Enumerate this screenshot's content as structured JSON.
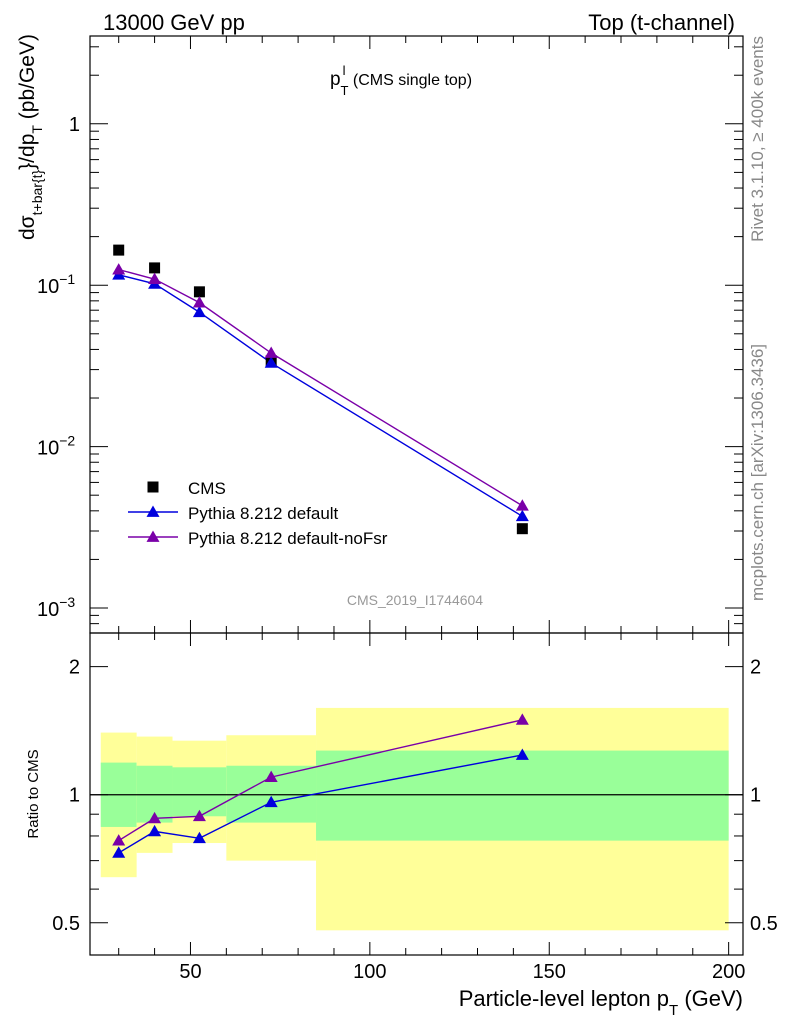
{
  "header": {
    "left": "13000 GeV pp",
    "right": "Top (t-channel)"
  },
  "side_labels": {
    "top": "Rivet 3.1.10, ≥ 400k events",
    "bottom": "mcplots.cern.ch [arXiv:1306.3436]"
  },
  "chart_data": [
    {
      "type": "line",
      "panel": "main",
      "title": "p_T^l (CMS single top)",
      "title_parts": {
        "base": "p",
        "sub": "T",
        "sup": "l",
        "rest": " (CMS single top)"
      },
      "ylabel": "dσ_{t+bar{t}}/dp_T  (pb/GeV)",
      "ylabel_parts": {
        "a": "dσ",
        "sub1": "t+bar{t}",
        "b": "}/dp",
        "sub2": "T",
        "c": "   (pb/GeV)"
      },
      "xlim": [
        22,
        204
      ],
      "yscale": "log",
      "ylim": [
        0.0007,
        3.5
      ],
      "yticks": [
        {
          "value": 1,
          "label": "1"
        },
        {
          "value": 0.1,
          "base": "10",
          "exp": "−1"
        },
        {
          "value": 0.01,
          "base": "10",
          "exp": "−2"
        },
        {
          "value": 0.001,
          "base": "10",
          "exp": "−3"
        }
      ],
      "watermark": "CMS_2019_I1744604",
      "legend_position": "lower-left",
      "series": [
        {
          "name": "CMS",
          "marker": "square",
          "color": "#000000",
          "x": [
            30,
            40,
            52.5,
            72.5,
            142.5
          ],
          "y": [
            0.165,
            0.128,
            0.091,
            0.034,
            0.0031
          ]
        },
        {
          "name": "Pythia 8.212 default",
          "marker": "triangle",
          "color": "#0000dd",
          "x": [
            30,
            40,
            52.5,
            72.5,
            142.5
          ],
          "y": [
            0.116,
            0.102,
            0.068,
            0.033,
            0.0037
          ]
        },
        {
          "name": "Pythia 8.212 default-noFsr",
          "marker": "triangle",
          "color": "#7a00a8",
          "x": [
            30,
            40,
            52.5,
            72.5,
            142.5
          ],
          "y": [
            0.125,
            0.109,
            0.078,
            0.038,
            0.0043
          ]
        }
      ]
    },
    {
      "type": "line",
      "panel": "ratio",
      "ylabel": "Ratio to CMS",
      "xlabel": "Particle-level lepton p_T (GeV)",
      "xlabel_parts": {
        "a": "Particle-level lepton p",
        "sub": "T",
        "b": " (GeV)"
      },
      "xlim": [
        22,
        204
      ],
      "xticks": [
        50,
        100,
        150,
        200
      ],
      "yscale": "log",
      "ylim": [
        0.42,
        2.4
      ],
      "yticks": [
        0.5,
        1,
        2
      ],
      "reference_line": 1,
      "bands": [
        {
          "x0": 25,
          "x1": 35,
          "outer": [
            0.64,
            1.4
          ],
          "inner": [
            0.84,
            1.19
          ]
        },
        {
          "x0": 35,
          "x1": 45,
          "outer": [
            0.73,
            1.37
          ],
          "inner": [
            0.86,
            1.17
          ]
        },
        {
          "x0": 45,
          "x1": 60,
          "outer": [
            0.77,
            1.34
          ],
          "inner": [
            0.89,
            1.16
          ]
        },
        {
          "x0": 60,
          "x1": 85,
          "outer": [
            0.7,
            1.38
          ],
          "inner": [
            0.86,
            1.17
          ]
        },
        {
          "x0": 85,
          "x1": 200,
          "outer": [
            0.48,
            1.6
          ],
          "inner": [
            0.78,
            1.27
          ]
        }
      ],
      "band_colors": {
        "outer": "#ffff99",
        "inner": "#99ff99"
      },
      "series": [
        {
          "name": "Pythia 8.212 default",
          "color": "#0000dd",
          "x": [
            30,
            40,
            52.5,
            72.5,
            142.5
          ],
          "y": [
            0.73,
            0.82,
            0.79,
            0.96,
            1.24
          ]
        },
        {
          "name": "Pythia 8.212 default-noFsr",
          "color": "#7a00a8",
          "x": [
            30,
            40,
            52.5,
            72.5,
            142.5
          ],
          "y": [
            0.78,
            0.88,
            0.89,
            1.1,
            1.5
          ]
        }
      ]
    }
  ]
}
